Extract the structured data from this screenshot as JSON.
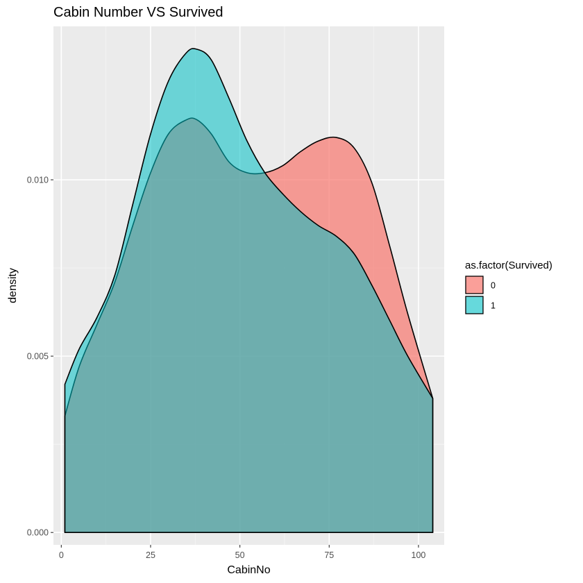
{
  "chart_data": {
    "type": "area",
    "subtype": "density",
    "title": "Cabin Number VS Survived",
    "xlabel": "CabinNo",
    "ylabel": "density",
    "xlim": [
      -2.2,
      107.2
    ],
    "ylim": [
      -0.00035,
      0.01435
    ],
    "x_ticks": [
      0,
      25,
      50,
      75,
      100
    ],
    "x_tick_labels": [
      "0",
      "25",
      "50",
      "75",
      "100"
    ],
    "y_ticks": [
      0.0,
      0.005,
      0.01
    ],
    "y_tick_labels": [
      "0.000",
      "0.005",
      "0.010"
    ],
    "grid": true,
    "legend": {
      "title": "as.factor(Survived)",
      "placement": "right"
    },
    "series": [
      {
        "name": "0",
        "color": "#F8766D",
        "opacity": 0.7,
        "x": [
          1,
          5,
          10,
          15,
          20,
          25,
          30,
          35,
          38,
          42,
          47,
          52,
          57,
          62,
          67,
          72,
          77,
          82,
          87,
          92,
          97,
          104
        ],
        "y": [
          0.0033,
          0.0047,
          0.0059,
          0.0071,
          0.0087,
          0.0102,
          0.0113,
          0.0117,
          0.0117,
          0.0113,
          0.0105,
          0.0102,
          0.0102,
          0.0104,
          0.0108,
          0.0111,
          0.0112,
          0.0109,
          0.0099,
          0.0081,
          0.0062,
          0.0038
        ]
      },
      {
        "name": "1",
        "color": "#00BFC4",
        "opacity": 0.55,
        "x": [
          1,
          5,
          10,
          15,
          20,
          25,
          30,
          35,
          38,
          42,
          47,
          52,
          57,
          62,
          67,
          72,
          77,
          82,
          87,
          92,
          97,
          104
        ],
        "y": [
          0.0042,
          0.0052,
          0.0061,
          0.0073,
          0.0093,
          0.0113,
          0.0128,
          0.0136,
          0.0137,
          0.0134,
          0.0123,
          0.0111,
          0.0102,
          0.0096,
          0.0091,
          0.0087,
          0.0084,
          0.0079,
          0.007,
          0.006,
          0.005,
          0.0038
        ]
      }
    ]
  }
}
